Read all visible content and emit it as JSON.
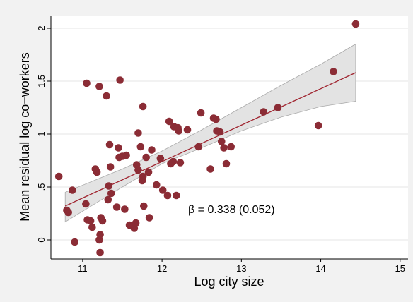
{
  "chart_data": {
    "type": "scatter",
    "title": "",
    "xlabel": "Log city size",
    "ylabel": "Mean residual log co−workers",
    "xlim": [
      10.6,
      15.1
    ],
    "ylim": [
      -0.18,
      2.12
    ],
    "x_ticks": [
      11,
      12,
      13,
      14,
      15
    ],
    "x_tick_labels": [
      "11",
      "12",
      "13",
      "14",
      "15"
    ],
    "y_ticks": [
      0,
      0.5,
      1,
      1.5,
      2
    ],
    "y_tick_labels": [
      "0",
      ".5",
      "1",
      "1.5",
      "2"
    ],
    "grid": "horizontal",
    "legend": "none",
    "annotation": "β = 0.338 (0.052)",
    "colors": {
      "points": "#8b2c35",
      "fit_line": "#a02530",
      "ci_band_fill": "#e3e3e3",
      "ci_band_edge": "#aaaaaa",
      "plot_background": "#ffffff",
      "figure_background": "#f2f2f2"
    },
    "fit_line": {
      "x": [
        10.78,
        14.44
      ],
      "y": [
        0.32,
        1.58
      ]
    },
    "confidence_band": {
      "x": [
        10.78,
        11.5,
        12.0,
        12.5,
        13.0,
        13.5,
        14.0,
        14.44
      ],
      "upper": [
        0.45,
        0.67,
        0.84,
        1.04,
        1.25,
        1.46,
        1.66,
        1.85
      ],
      "lower": [
        0.17,
        0.5,
        0.72,
        0.87,
        1.03,
        1.16,
        1.26,
        1.31
      ]
    },
    "points": [
      {
        "x": 10.7,
        "y": 0.6
      },
      {
        "x": 10.8,
        "y": 0.28
      },
      {
        "x": 10.82,
        "y": 0.26
      },
      {
        "x": 10.87,
        "y": 0.47
      },
      {
        "x": 10.9,
        "y": -0.02
      },
      {
        "x": 11.04,
        "y": 0.34
      },
      {
        "x": 11.05,
        "y": 1.48
      },
      {
        "x": 11.06,
        "y": 0.19
      },
      {
        "x": 11.1,
        "y": 0.18
      },
      {
        "x": 11.12,
        "y": 0.12
      },
      {
        "x": 11.16,
        "y": 0.67
      },
      {
        "x": 11.18,
        "y": 0.64
      },
      {
        "x": 11.21,
        "y": 0.0
      },
      {
        "x": 11.21,
        "y": 1.45
      },
      {
        "x": 11.22,
        "y": -0.12
      },
      {
        "x": 11.22,
        "y": 0.05
      },
      {
        "x": 11.23,
        "y": 0.21
      },
      {
        "x": 11.25,
        "y": 0.18
      },
      {
        "x": 11.3,
        "y": 1.36
      },
      {
        "x": 11.32,
        "y": 0.38
      },
      {
        "x": 11.33,
        "y": 0.51
      },
      {
        "x": 11.34,
        "y": 0.9
      },
      {
        "x": 11.35,
        "y": 0.69
      },
      {
        "x": 11.36,
        "y": 0.44
      },
      {
        "x": 11.43,
        "y": 0.31
      },
      {
        "x": 11.45,
        "y": 0.87
      },
      {
        "x": 11.46,
        "y": 0.78
      },
      {
        "x": 11.47,
        "y": 1.51
      },
      {
        "x": 11.5,
        "y": 0.79
      },
      {
        "x": 11.53,
        "y": 0.29
      },
      {
        "x": 11.55,
        "y": 0.8
      },
      {
        "x": 11.59,
        "y": 0.14
      },
      {
        "x": 11.63,
        "y": 0.13
      },
      {
        "x": 11.65,
        "y": 0.11
      },
      {
        "x": 11.67,
        "y": 0.16
      },
      {
        "x": 11.68,
        "y": 0.71
      },
      {
        "x": 11.7,
        "y": 0.66
      },
      {
        "x": 11.7,
        "y": 1.01
      },
      {
        "x": 11.73,
        "y": 0.88
      },
      {
        "x": 11.75,
        "y": 0.56
      },
      {
        "x": 11.76,
        "y": 0.6
      },
      {
        "x": 11.76,
        "y": 1.26
      },
      {
        "x": 11.77,
        "y": 0.32
      },
      {
        "x": 11.8,
        "y": 0.78
      },
      {
        "x": 11.83,
        "y": 0.64
      },
      {
        "x": 11.84,
        "y": 0.21
      },
      {
        "x": 11.87,
        "y": 0.85
      },
      {
        "x": 11.93,
        "y": 0.52
      },
      {
        "x": 11.98,
        "y": 0.77
      },
      {
        "x": 12.01,
        "y": 0.47
      },
      {
        "x": 12.07,
        "y": 0.42
      },
      {
        "x": 12.09,
        "y": 1.12
      },
      {
        "x": 12.11,
        "y": 0.72
      },
      {
        "x": 12.14,
        "y": 0.74
      },
      {
        "x": 12.15,
        "y": 1.07
      },
      {
        "x": 12.18,
        "y": 0.42
      },
      {
        "x": 12.2,
        "y": 1.06
      },
      {
        "x": 12.21,
        "y": 1.03
      },
      {
        "x": 12.23,
        "y": 0.73
      },
      {
        "x": 12.32,
        "y": 1.04
      },
      {
        "x": 12.46,
        "y": 0.88
      },
      {
        "x": 12.49,
        "y": 1.2
      },
      {
        "x": 12.61,
        "y": 0.67
      },
      {
        "x": 12.65,
        "y": 1.15
      },
      {
        "x": 12.68,
        "y": 1.14
      },
      {
        "x": 12.69,
        "y": 1.03
      },
      {
        "x": 12.73,
        "y": 1.02
      },
      {
        "x": 12.75,
        "y": 0.93
      },
      {
        "x": 12.78,
        "y": 0.87
      },
      {
        "x": 12.81,
        "y": 0.72
      },
      {
        "x": 12.87,
        "y": 0.88
      },
      {
        "x": 13.28,
        "y": 1.21
      },
      {
        "x": 13.46,
        "y": 1.25
      },
      {
        "x": 13.97,
        "y": 1.08
      },
      {
        "x": 14.16,
        "y": 1.59
      },
      {
        "x": 14.44,
        "y": 2.04
      }
    ]
  }
}
